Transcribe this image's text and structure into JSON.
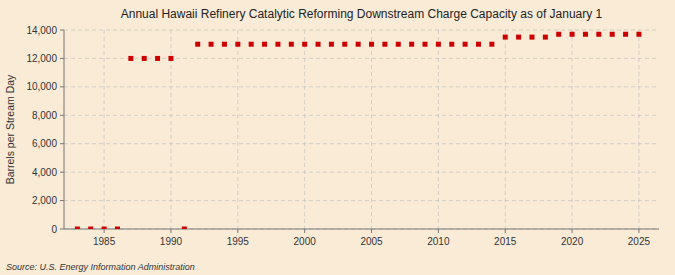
{
  "chart_data": {
    "type": "scatter",
    "title": "Annual Hawaii Refinery Catalytic Reforming Downstream Charge Capacity as of January 1",
    "y_label": "Barrels per Stream Day",
    "annotations": [
      "Source: U.S. Energy Information Administration"
    ],
    "x": [
      1983,
      1984,
      1985,
      1986,
      1987,
      1988,
      1989,
      1990,
      1991,
      1992,
      1993,
      1994,
      1995,
      1996,
      1997,
      1998,
      1999,
      2000,
      2001,
      2002,
      2003,
      2004,
      2005,
      2006,
      2007,
      2008,
      2009,
      2010,
      2011,
      2012,
      2013,
      2014,
      2015,
      2016,
      2017,
      2018,
      2019,
      2020,
      2021,
      2022,
      2023,
      2024,
      2025
    ],
    "values": [
      0,
      0,
      0,
      0,
      12000,
      12000,
      12000,
      12000,
      0,
      13000,
      13000,
      13000,
      13000,
      13000,
      13000,
      13000,
      13000,
      13000,
      13000,
      13000,
      13000,
      13000,
      13000,
      13000,
      13000,
      13000,
      13000,
      13000,
      13000,
      13000,
      13000,
      13000,
      13500,
      13500,
      13500,
      13500,
      13700,
      13700,
      13700,
      13700,
      13700,
      13700,
      13700
    ],
    "color": "#cc0000",
    "marker": "square",
    "xlim": [
      1982,
      2026.5
    ],
    "ylim": [
      0,
      14000
    ],
    "xticks": [
      1985,
      1990,
      1995,
      2000,
      2005,
      2010,
      2015,
      2020,
      2025
    ],
    "yticks": [
      0,
      {
        "value": 2000,
        "label": "2,000"
      },
      {
        "value": 4000,
        "label": "4,000"
      },
      {
        "value": 6000,
        "label": "6,000"
      },
      {
        "value": 8000,
        "label": "8,000"
      },
      {
        "value": 10000,
        "label": "10,000"
      },
      {
        "value": 12000,
        "label": "12,000"
      },
      {
        "value": 14000,
        "label": "14,000"
      }
    ],
    "grid": true
  }
}
